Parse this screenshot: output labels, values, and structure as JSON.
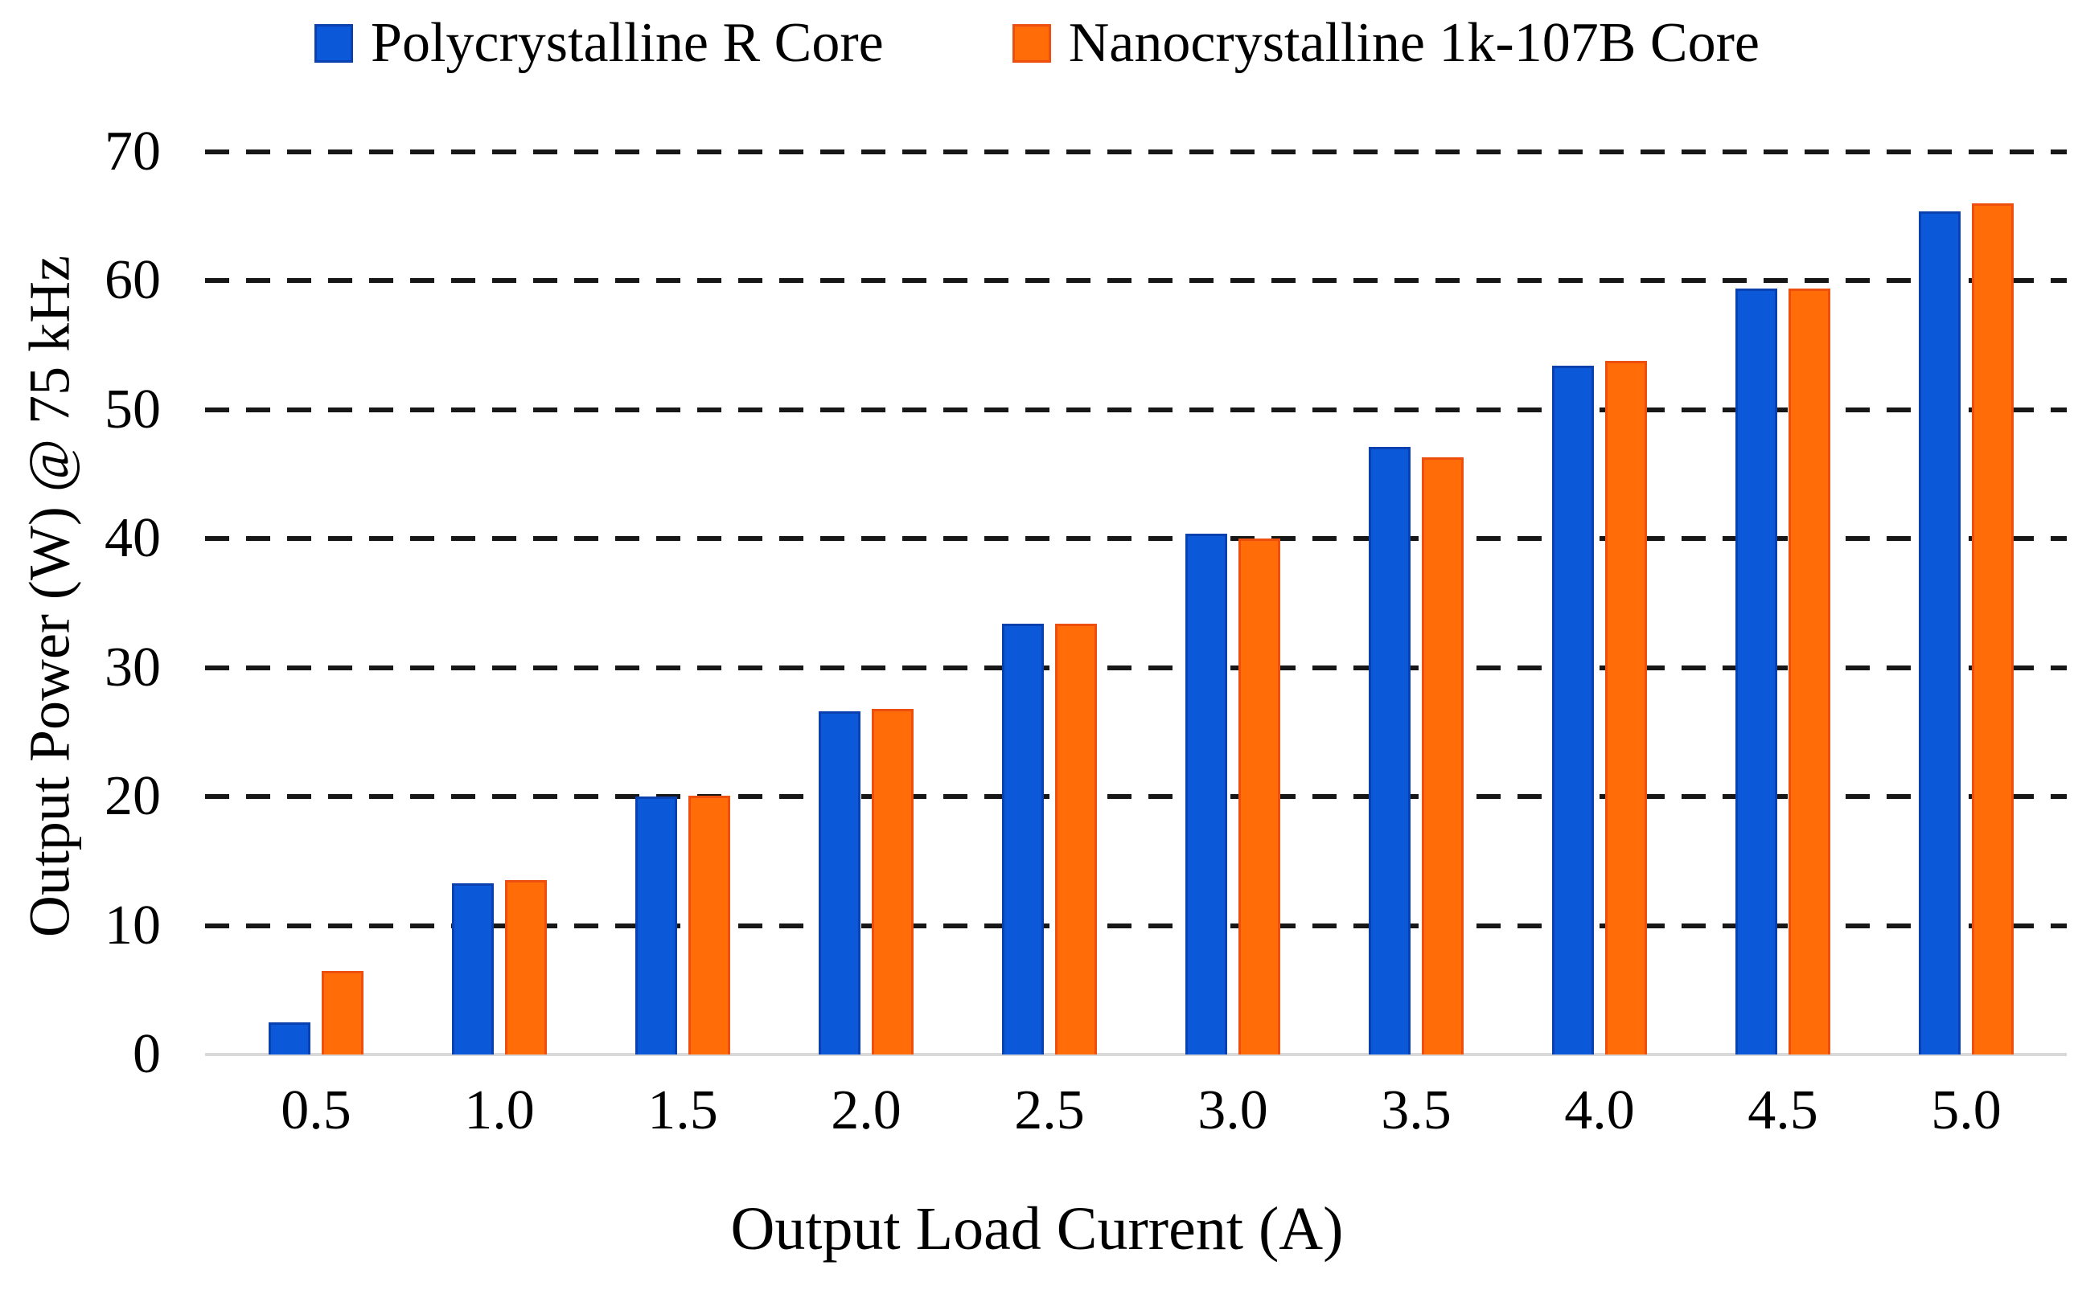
{
  "figure": {
    "kind": "grouped-bar-chart",
    "background": "#ffffff"
  },
  "legend": {
    "position": "top-center",
    "items": [
      {
        "label": "Polycrystalline R Core",
        "color": "#0b58d8"
      },
      {
        "label": "Nanocrystalline 1k-107B Core",
        "color": "#ff6c08"
      }
    ]
  },
  "y_axis": {
    "title": "Output Power (W) @ 75 kHz",
    "ticks": [
      "0",
      "10",
      "20",
      "30",
      "40",
      "50",
      "60",
      "70"
    ]
  },
  "x_axis": {
    "title": "Output Load Current (A)",
    "ticks": [
      "0.5",
      "1.0",
      "1.5",
      "2.0",
      "2.5",
      "3.0",
      "3.5",
      "4.0",
      "4.5",
      "5.0"
    ]
  },
  "chart_data": {
    "type": "bar",
    "title": "",
    "xlabel": "Output Load Current (A)",
    "ylabel": "Output Power (W) @ 75 kHz",
    "categories": [
      "0.5",
      "1.0",
      "1.5",
      "2.0",
      "2.5",
      "3.0",
      "3.5",
      "4.0",
      "4.5",
      "5.0"
    ],
    "series": [
      {
        "name": "Polycrystalline R Core",
        "color": "#0b58d8",
        "border_color": "#0a41ae",
        "values": [
          2.5,
          13.3,
          20.0,
          26.6,
          33.4,
          40.4,
          47.1,
          53.4,
          59.4,
          65.4
        ]
      },
      {
        "name": "Nanocrystalline 1k-107B Core",
        "color": "#ff6c08",
        "border_color": "#ef4f0e",
        "values": [
          6.5,
          13.5,
          20.1,
          26.8,
          33.4,
          40.0,
          46.3,
          53.8,
          59.4,
          66.0
        ]
      }
    ],
    "ylim": [
      0,
      70
    ],
    "yticks": [
      0,
      10,
      20,
      30,
      40,
      50,
      60,
      70
    ],
    "gridlines": {
      "values": [
        10,
        20,
        30,
        40,
        50,
        60,
        70
      ],
      "style": "dashed",
      "orientation": "horizontal"
    },
    "legend_position": "top",
    "grid_color": "#171717",
    "baseline_color": "#d9d9d9"
  }
}
